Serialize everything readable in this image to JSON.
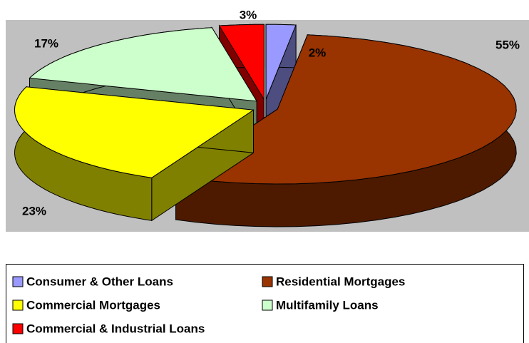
{
  "chart_data": {
    "type": "pie",
    "categories": [
      "Consumer & Other Loans",
      "Residential Mortgages",
      "Commercial Mortgages",
      "Multifamily Loans",
      "Commercial & Industrial Loans"
    ],
    "values": [
      2,
      55,
      23,
      17,
      3
    ],
    "value_labels": [
      "2%",
      "55%",
      "23%",
      "17%",
      "3%"
    ],
    "colors": [
      "#9999ff",
      "#993300",
      "#ffff00",
      "#ccffcc",
      "#ff0000"
    ],
    "legend": "bottom"
  }
}
